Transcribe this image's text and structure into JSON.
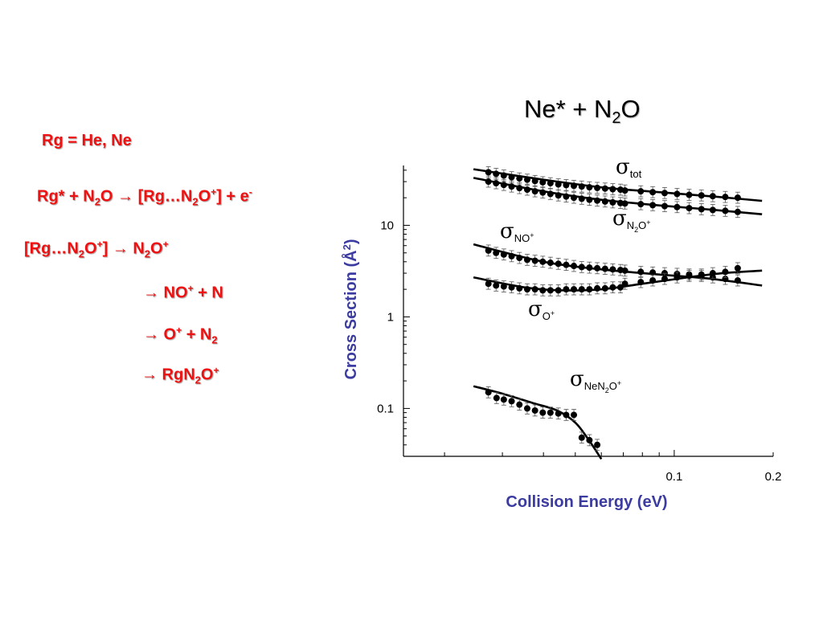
{
  "reactions": {
    "rg_label": "Rg = He, Ne",
    "line1": {
      "a": "Rg* + N",
      "a_sub": "2",
      "b": "O ",
      "arrow": "→",
      "c": " [Rg…N",
      "c_sub": "2",
      "d": "O",
      "d_sup": "+",
      "e": "] + e",
      "e_sup": "-"
    },
    "line2": {
      "a": "[Rg…N",
      "a_sub": "2",
      "b": "O",
      "b_sup": "+",
      "c": "] ",
      "arrow": "→",
      "d": " N",
      "d_sub": "2",
      "e": "O",
      "e_sup": "+"
    },
    "line3": {
      "arrow": "→",
      "a": " NO",
      "a_sup": "+",
      "b": " + N"
    },
    "line4": {
      "arrow": "→",
      "a": " O",
      "a_sup": "+",
      "b": " + N",
      "b_sub": "2"
    },
    "line5": {
      "arrow": "→",
      "a": " RgN",
      "a_sub": "2",
      "b": "O",
      "b_sup": "+"
    }
  },
  "title": {
    "main": "Ne* + N",
    "sub": "2",
    "tail": "O"
  },
  "chart_data": {
    "type": "scatter",
    "xlabel": "Collision Energy (eV)",
    "ylabel": "Cross Section (Å²)",
    "ylabel_main": "Cross Section (Å",
    "ylabel_sup": "2",
    "ylabel_tail": ")",
    "x_scale": "log",
    "y_scale": "log",
    "xlim": [
      0.015,
      0.2
    ],
    "ylim": [
      0.03,
      45
    ],
    "x_tick_labels": [
      {
        "value": 0.1,
        "label": "0.1"
      },
      {
        "value": 0.2,
        "label": "0.2"
      }
    ],
    "y_tick_labels": [
      {
        "value": 0.1,
        "label": "0.1"
      },
      {
        "value": 1,
        "label": "1"
      },
      {
        "value": 10,
        "label": "10"
      }
    ],
    "x_minor_ticks": [
      0.02,
      0.03,
      0.04,
      0.05,
      0.06,
      0.07,
      0.08,
      0.09,
      0.1,
      0.2
    ],
    "series": [
      {
        "sigma": "σ",
        "label_sub": "tot",
        "label_sub_sup": "",
        "x": [
          0.0272,
          0.0287,
          0.0303,
          0.032,
          0.0338,
          0.0357,
          0.0377,
          0.0398,
          0.042,
          0.0444,
          0.0469,
          0.0495,
          0.0523,
          0.0552,
          0.0583,
          0.0616,
          0.065,
          0.0686,
          0.0708,
          0.0791,
          0.086,
          0.0935,
          0.102,
          0.111,
          0.121,
          0.131,
          0.143,
          0.156
        ],
        "y": [
          38.0,
          36.5,
          35.0,
          33.5,
          32.5,
          31.5,
          30.5,
          29.5,
          28.8,
          28.0,
          27.5,
          27.0,
          26.5,
          26.0,
          25.6,
          25.2,
          24.8,
          24.5,
          24.0,
          23.5,
          23.0,
          22.5,
          22.0,
          21.5,
          21.2,
          20.8,
          20.4,
          20.0
        ],
        "fit_x": [
          0.0245,
          0.04,
          0.06,
          0.09,
          0.13,
          0.185
        ],
        "fit_y": [
          41.0,
          31.5,
          26.0,
          23.0,
          20.7,
          18.5
        ]
      },
      {
        "sigma": "σ",
        "label_sub": "N",
        "label_sub2": "2",
        "label_sub3": "O",
        "label_sub_sup": "+",
        "x": [
          0.0272,
          0.0287,
          0.0303,
          0.032,
          0.0338,
          0.0357,
          0.0377,
          0.0398,
          0.042,
          0.0444,
          0.0469,
          0.0495,
          0.0523,
          0.0552,
          0.0583,
          0.0616,
          0.065,
          0.0686,
          0.0708,
          0.0791,
          0.086,
          0.0935,
          0.102,
          0.111,
          0.121,
          0.131,
          0.143,
          0.156
        ],
        "y": [
          30.0,
          28.8,
          27.6,
          26.5,
          25.5,
          24.5,
          23.5,
          22.8,
          22.0,
          21.2,
          20.6,
          20.0,
          19.5,
          19.0,
          18.6,
          18.2,
          17.8,
          17.5,
          17.3,
          17.0,
          16.6,
          16.2,
          15.8,
          15.4,
          15.0,
          14.7,
          14.4,
          14.0
        ],
        "fit_x": [
          0.0245,
          0.04,
          0.06,
          0.09,
          0.13,
          0.185
        ],
        "fit_y": [
          33.0,
          23.5,
          19.0,
          16.5,
          14.8,
          13.2
        ]
      },
      {
        "sigma": "σ",
        "label_sub": "NO",
        "label_sub_sup": "+",
        "x": [
          0.0272,
          0.0287,
          0.0303,
          0.032,
          0.0338,
          0.0357,
          0.0377,
          0.0398,
          0.042,
          0.0444,
          0.0469,
          0.0495,
          0.0523,
          0.0552,
          0.0583,
          0.0616,
          0.065,
          0.0686,
          0.0708,
          0.0791,
          0.086,
          0.0935,
          0.102,
          0.111,
          0.121,
          0.131,
          0.143,
          0.156
        ],
        "y": [
          5.3,
          5.0,
          4.8,
          4.6,
          4.4,
          4.2,
          4.1,
          4.0,
          3.9,
          3.8,
          3.7,
          3.6,
          3.5,
          3.45,
          3.4,
          3.35,
          3.3,
          3.25,
          3.2,
          3.1,
          3.05,
          3.0,
          2.95,
          2.9,
          2.8,
          2.7,
          2.6,
          2.5
        ],
        "fit_x": [
          0.0245,
          0.04,
          0.06,
          0.09,
          0.13,
          0.185
        ],
        "fit_y": [
          6.2,
          4.0,
          3.3,
          2.9,
          2.6,
          2.2
        ]
      },
      {
        "sigma": "σ",
        "label_sub": "O",
        "label_sub_sup": "+",
        "x": [
          0.0272,
          0.0287,
          0.0303,
          0.032,
          0.0338,
          0.0357,
          0.0377,
          0.0398,
          0.042,
          0.0444,
          0.0469,
          0.0495,
          0.0523,
          0.0552,
          0.0583,
          0.0616,
          0.065,
          0.0686,
          0.0708,
          0.0791,
          0.086,
          0.0935,
          0.102,
          0.111,
          0.121,
          0.131,
          0.143,
          0.156
        ],
        "y": [
          2.3,
          2.2,
          2.15,
          2.1,
          2.05,
          2.0,
          2.0,
          1.95,
          1.95,
          1.95,
          2.0,
          2.0,
          2.0,
          2.0,
          2.05,
          2.05,
          2.1,
          2.1,
          2.3,
          2.4,
          2.5,
          2.6,
          2.7,
          2.8,
          2.9,
          3.0,
          3.1,
          3.4
        ],
        "fit_x": [
          0.0245,
          0.035,
          0.045,
          0.06,
          0.08,
          0.11,
          0.14,
          0.185
        ],
        "fit_y": [
          2.7,
          2.1,
          1.95,
          2.0,
          2.3,
          2.7,
          3.0,
          3.2
        ]
      },
      {
        "sigma": "σ",
        "label_sub": "NeN",
        "label_sub2": "2",
        "label_sub3": "O",
        "label_sub_sup": "+",
        "x": [
          0.0272,
          0.0288,
          0.0303,
          0.032,
          0.0338,
          0.0357,
          0.0377,
          0.0398,
          0.042,
          0.0444,
          0.0469,
          0.0495,
          0.0523,
          0.0552,
          0.0583
        ],
        "y": [
          0.15,
          0.13,
          0.125,
          0.12,
          0.11,
          0.1,
          0.095,
          0.09,
          0.09,
          0.088,
          0.085,
          0.085,
          0.048,
          0.045,
          0.04
        ],
        "fit_x": [
          0.0245,
          0.03,
          0.037,
          0.044,
          0.05,
          0.055,
          0.06
        ],
        "fit_y": [
          0.175,
          0.145,
          0.115,
          0.095,
          0.07,
          0.045,
          0.028
        ]
      }
    ]
  }
}
